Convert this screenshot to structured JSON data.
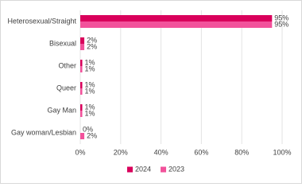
{
  "chart_data": {
    "type": "hbar",
    "categories": [
      "Heterosexual/Straight",
      "Bisexual",
      "Other",
      "Queer",
      "Gay Man",
      "Gay woman/Lesbian"
    ],
    "series": [
      {
        "name": "2024",
        "color": "#d9005b",
        "values": [
          95,
          2,
          1,
          1,
          1,
          0
        ],
        "value_labels": [
          "95%",
          "2%",
          "1%",
          "1%",
          "1%",
          "0%"
        ]
      },
      {
        "name": "2023",
        "color": "#f2529b",
        "values": [
          95,
          2,
          1,
          1,
          1,
          2
        ],
        "value_labels": [
          "95%",
          "2%",
          "1%",
          "1%",
          "1%",
          "2%"
        ]
      }
    ],
    "xlim": [
      0,
      100
    ],
    "xticks": [
      {
        "value": 0,
        "label": "0%"
      },
      {
        "value": 20,
        "label": "20%"
      },
      {
        "value": 40,
        "label": "40%"
      },
      {
        "value": 60,
        "label": "60%"
      },
      {
        "value": 80,
        "label": "80%"
      },
      {
        "value": 100,
        "label": "100%"
      }
    ],
    "grid": true,
    "legend": "bottom"
  }
}
